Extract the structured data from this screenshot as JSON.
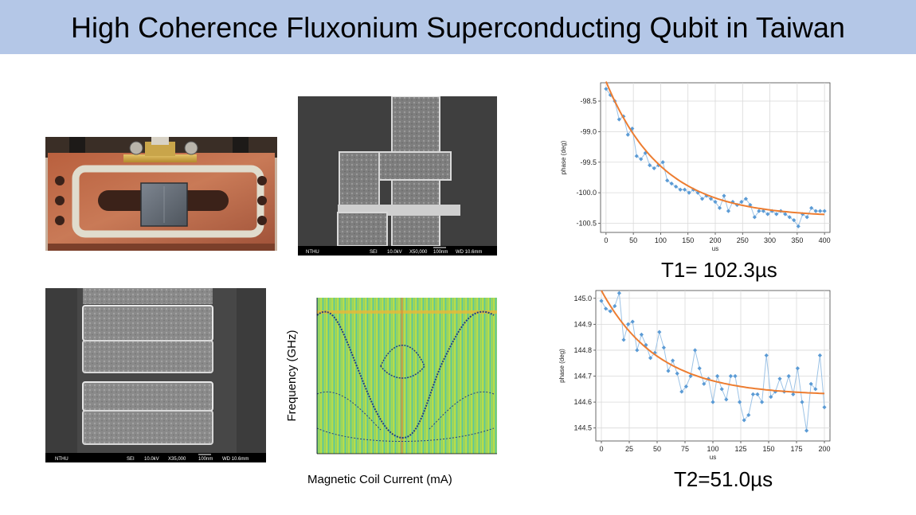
{
  "slide": {
    "title": "High Coherence Fluxonium Superconducting Qubit in Taiwan"
  },
  "sem_top": {
    "footer": [
      "NTHU",
      "SEI",
      "10.0kV",
      "X50,000",
      "100nm",
      "WD 10.6mm"
    ]
  },
  "sem_bottom": {
    "footer": [
      "NTHU",
      "SEI",
      "10.0kV",
      "X35,000",
      "100nm",
      "WD 10.6mm"
    ]
  },
  "spectroscopy": {
    "ylabel": "Frequency (GHz)",
    "xlabel": "Magnetic Coil Current  (mA)"
  },
  "t1_plot": {
    "caption": "T1= 102.3µs"
  },
  "t2_plot": {
    "caption": "T2=51.0µs"
  },
  "chart_data": [
    {
      "type": "line",
      "title": "",
      "xlabel": "us",
      "ylabel": "phase (deg)",
      "xlim": [
        -10,
        410
      ],
      "ylim": [
        -100.65,
        -98.2
      ],
      "xticks": [
        0,
        50,
        100,
        150,
        200,
        250,
        300,
        350,
        400
      ],
      "yticks": [
        -98.5,
        -99.0,
        -99.5,
        -100.0,
        -100.5
      ],
      "ytick_labels": [
        "-98.5",
        "-99.0",
        "-99.5",
        "-100.0",
        "-100.5"
      ],
      "grid": true,
      "series": [
        {
          "kind": "data",
          "color": "#5b9bd5",
          "x": [
            0,
            8,
            16,
            24,
            32,
            40,
            48,
            56,
            64,
            72,
            80,
            88,
            96,
            104,
            112,
            120,
            128,
            136,
            144,
            152,
            160,
            168,
            176,
            184,
            192,
            200,
            208,
            216,
            224,
            232,
            240,
            248,
            256,
            264,
            272,
            280,
            288,
            296,
            304,
            312,
            320,
            328,
            336,
            344,
            352,
            360,
            368,
            376,
            384,
            392,
            400
          ],
          "y": [
            -98.3,
            -98.4,
            -98.5,
            -98.8,
            -98.75,
            -99.05,
            -98.95,
            -99.4,
            -99.45,
            -99.35,
            -99.55,
            -99.6,
            -99.55,
            -99.5,
            -99.8,
            -99.85,
            -99.9,
            -99.95,
            -99.95,
            -100.0,
            -99.95,
            -100.0,
            -100.1,
            -100.05,
            -100.1,
            -100.15,
            -100.25,
            -100.05,
            -100.3,
            -100.15,
            -100.2,
            -100.15,
            -100.1,
            -100.2,
            -100.4,
            -100.3,
            -100.3,
            -100.35,
            -100.3,
            -100.35,
            -100.3,
            -100.35,
            -100.4,
            -100.45,
            -100.55,
            -100.35,
            -100.4,
            -100.25,
            -100.3,
            -100.3,
            -100.3
          ]
        },
        {
          "kind": "fit",
          "color": "#ed7d31",
          "model": "exp_decay",
          "A": -100.4,
          "B": 2.22,
          "tau": 102.3
        }
      ]
    },
    {
      "type": "line",
      "title": "",
      "xlabel": "us",
      "ylabel": "phase (deg)",
      "xlim": [
        -5,
        205
      ],
      "ylim": [
        144.45,
        145.03
      ],
      "xticks": [
        0,
        25,
        50,
        75,
        100,
        125,
        150,
        175,
        200
      ],
      "yticks": [
        145.0,
        144.9,
        144.8,
        144.7,
        144.6,
        144.5
      ],
      "ytick_labels": [
        "145.0",
        "144.9",
        "144.8",
        "144.7",
        "144.6",
        "144.5"
      ],
      "grid": true,
      "series": [
        {
          "kind": "data",
          "color": "#5b9bd5",
          "x": [
            0,
            4,
            8,
            12,
            16,
            20,
            24,
            28,
            32,
            36,
            40,
            44,
            48,
            52,
            56,
            60,
            64,
            68,
            72,
            76,
            80,
            84,
            88,
            92,
            96,
            100,
            104,
            108,
            112,
            116,
            120,
            124,
            128,
            132,
            136,
            140,
            144,
            148,
            152,
            156,
            160,
            164,
            168,
            172,
            176,
            180,
            184,
            188,
            192,
            196,
            200
          ],
          "y": [
            144.99,
            144.96,
            144.95,
            144.97,
            145.02,
            144.84,
            144.9,
            144.91,
            144.8,
            144.86,
            144.82,
            144.77,
            144.79,
            144.87,
            144.81,
            144.72,
            144.76,
            144.71,
            144.64,
            144.66,
            144.7,
            144.8,
            144.73,
            144.67,
            144.69,
            144.6,
            144.7,
            144.65,
            144.61,
            144.7,
            144.7,
            144.6,
            144.53,
            144.55,
            144.63,
            144.63,
            144.6,
            144.78,
            144.62,
            144.64,
            144.69,
            144.64,
            144.7,
            144.63,
            144.73,
            144.6,
            144.49,
            144.67,
            144.65,
            144.78,
            144.58
          ]
        },
        {
          "kind": "fit",
          "color": "#ed7d31",
          "model": "exp_decay",
          "A": 144.625,
          "B": 0.405,
          "tau": 51.0
        }
      ]
    }
  ]
}
